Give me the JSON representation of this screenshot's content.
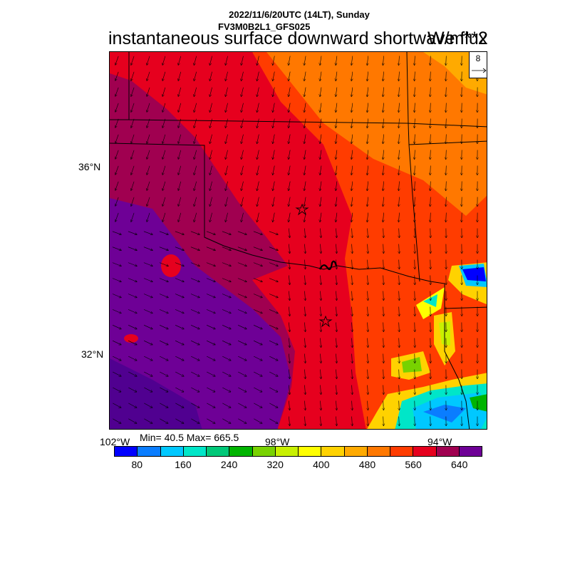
{
  "header": {
    "datetime": "2022/11/6/20UTC (14LT), Sunday",
    "model": "FV3M0B2L1_GFS025",
    "variable": "instantaneous surface downward shortwave flux",
    "units": "W/m**2"
  },
  "axes": {
    "lat_labels": [
      "36°N",
      "32°N"
    ],
    "lon_labels": [
      "102°W",
      "98°W",
      "94°W"
    ]
  },
  "stats": {
    "text": "Min= 40.5 Max= 665.5",
    "min": 40.5,
    "max": 665.5
  },
  "vector_reference": {
    "value": "8"
  },
  "colorbar": {
    "colors": [
      "#0000ff",
      "#0a7dff",
      "#00c8ff",
      "#00e6c8",
      "#00c878",
      "#00b400",
      "#78d200",
      "#c8f000",
      "#ffff00",
      "#ffd200",
      "#ffaa00",
      "#ff7800",
      "#ff3c00",
      "#e6001e",
      "#a00050",
      "#6e0096"
    ],
    "labels": [
      "80",
      "160",
      "240",
      "320",
      "400",
      "480",
      "560",
      "640"
    ]
  },
  "map": {
    "region": "Oklahoma / Texas",
    "markers": [
      "star",
      "star"
    ]
  }
}
